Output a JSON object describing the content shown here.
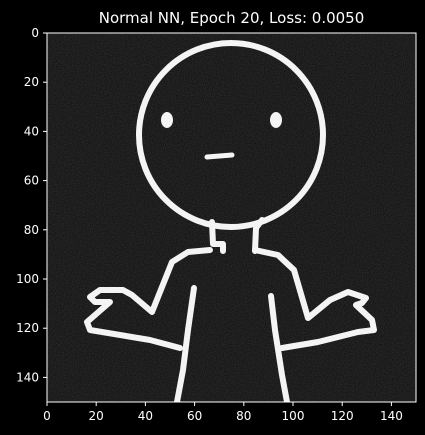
{
  "chart_data": {
    "type": "heatmap",
    "title": "Normal NN, Epoch 20, Loss: 0.0050",
    "xlabel": "",
    "ylabel": "",
    "xlim": [
      0,
      150
    ],
    "ylim": [
      150,
      0
    ],
    "x_ticks": [
      0,
      20,
      40,
      60,
      80,
      100,
      120,
      140
    ],
    "y_ticks": [
      0,
      20,
      40,
      60,
      80,
      100,
      120,
      140
    ],
    "image": {
      "width": 150,
      "height": 150,
      "content": "grayscale image of a white line drawing of a shrugging stick figure on a noisy black background",
      "colormap": "gray"
    },
    "grid": false
  },
  "colors": {
    "background": "#000000",
    "image_background": "#0b0b0b",
    "foreground": "#ffffff",
    "line": "#f4f4f4"
  }
}
